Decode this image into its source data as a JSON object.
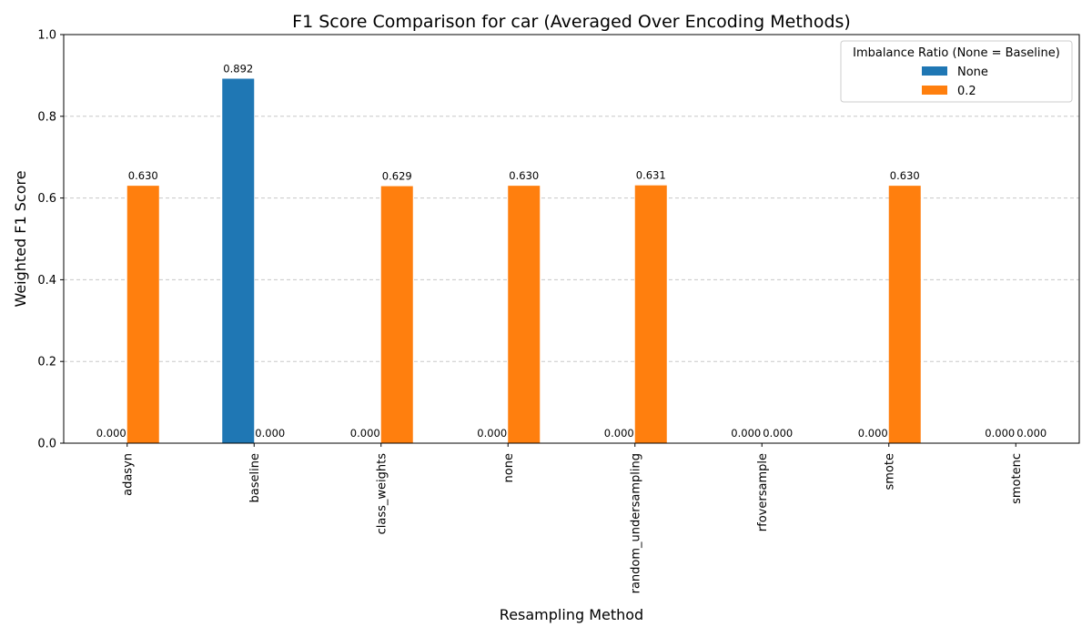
{
  "chart_data": {
    "type": "bar",
    "title": "F1 Score Comparison for car (Averaged Over Encoding Methods)",
    "xlabel": "Resampling Method",
    "ylabel": "Weighted F1 Score",
    "ylim": [
      0,
      1.0
    ],
    "yticks": [
      0.0,
      0.2,
      0.4,
      0.6,
      0.8,
      1.0
    ],
    "ytick_labels": [
      "0.0",
      "0.2",
      "0.4",
      "0.6",
      "0.8",
      "1.0"
    ],
    "grid": "y-dashed",
    "categories": [
      "adasyn",
      "baseline",
      "class_weights",
      "none",
      "random_undersampling",
      "rfoversample",
      "smote",
      "smotenc"
    ],
    "series": [
      {
        "name": "None",
        "color": "#1f77b4",
        "values": [
          0.0,
          0.892,
          0.0,
          0.0,
          0.0,
          0.0,
          0.0,
          0.0
        ],
        "labels": [
          "0.000",
          "0.892",
          "0.000",
          "0.000",
          "0.000",
          "0.000",
          "0.000",
          "0.000"
        ]
      },
      {
        "name": "0.2",
        "color": "#ff7f0e",
        "values": [
          0.63,
          0.0,
          0.629,
          0.63,
          0.631,
          0.0,
          0.63,
          0.0
        ],
        "labels": [
          "0.630",
          "0.000",
          "0.629",
          "0.630",
          "0.631",
          "0.000",
          "0.630",
          "0.000"
        ]
      }
    ],
    "legend": {
      "title": "Imbalance Ratio (None = Baseline)",
      "placement": "top-right"
    }
  }
}
